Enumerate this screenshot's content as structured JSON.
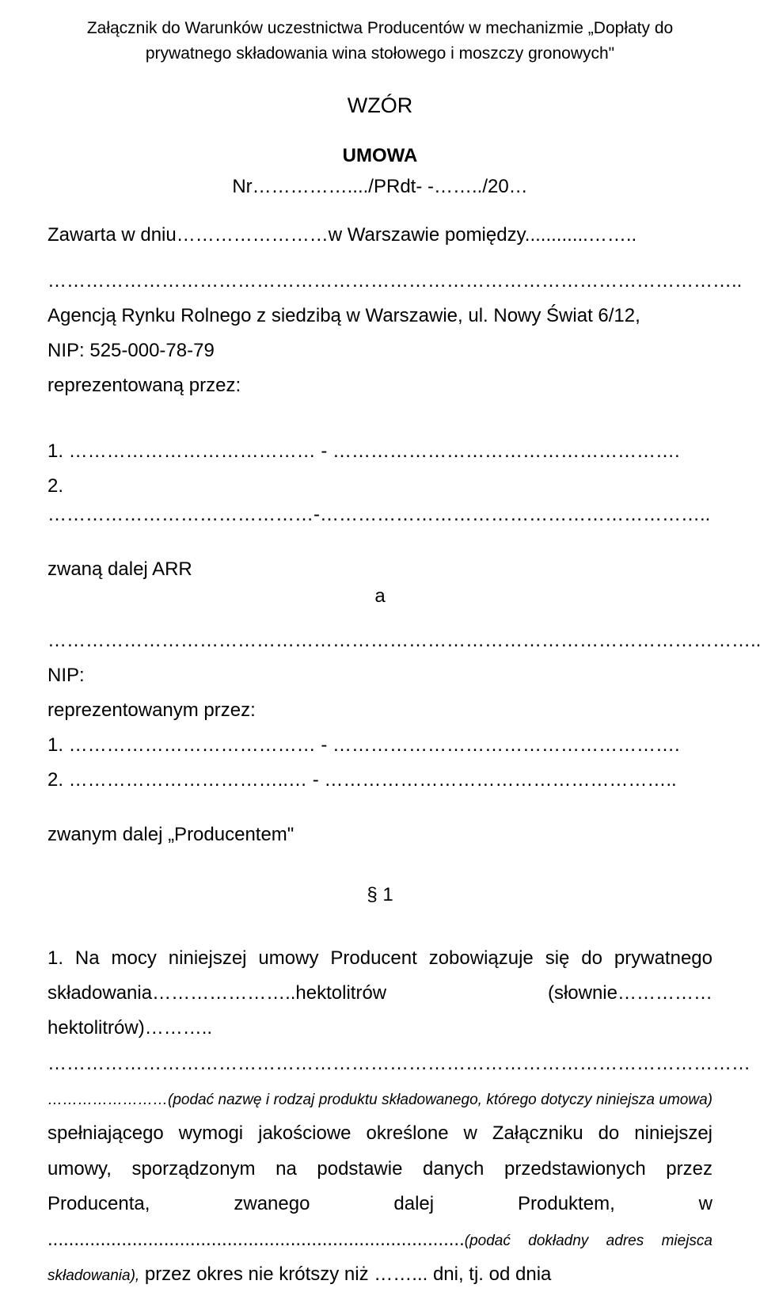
{
  "header": {
    "attachment": "Załącznik do Warunków uczestnictwa Producentów w mechanizmie „Dopłaty do prywatnego składowania wina stołowego i moszczy gronowych\""
  },
  "title": {
    "wzor": "WZÓR",
    "umowa": "UMOWA",
    "nr": "Nr……………..../PRdt-   -……../20…"
  },
  "body": {
    "zawarta": "Zawarta w dniu……………………w Warszawie pomiędzy............……..",
    "dots1": "………………………………………………………………………………………………..",
    "agencja": "Agencją Rynku Rolnego z siedzibą w Warszawie, ul. Nowy Świat 6/12,",
    "nip": "NIP: 525-000-78-79",
    "reprez": "reprezentowaną przez:",
    "rep1": "1. …………………………………   -   ……………………………………………….",
    "rep2": "2. ……………………………………-……………………………………………………..",
    "zwana_arr": "zwaną dalej ARR",
    "a": "a",
    "dots2": "…………………………………………………………………………………………………..",
    "nip2": "NIP:",
    "reprez2": "reprezentowanym przez:",
    "rep2_1": "1. …………………………………   -   ……………………………………………….",
    "rep2_2": "2. ……………………………..…   -   ………………………………………………..",
    "zwanym": "zwanym dalej „Producentem\"",
    "section1": "§ 1",
    "para1_prefix": "1. Na mocy niniejszej umowy Producent zobowiązuje się do prywatnego składowania…………………..hektolitrów (słownie……………hektolitrów)………..",
    "para1_dots": "…………………………………………………………………………………………………",
    "para1_italic": "……………………(podać nazwę i rodzaj produktu składowanego, którego dotyczy niniejsza umowa)",
    "para1_cont": "spełniającego wymogi jakościowe określone w Załączniku do niniejszej umowy, sporządzonym na podstawie danych przedstawionych przez Producenta, zwanego dalej Produktem, w ...............................................................................",
    "para1_italic2": "(podać dokładny adres miejsca składowania),",
    "para1_end": " przez okres nie krótszy niż ……... dni, tj. od dnia"
  }
}
